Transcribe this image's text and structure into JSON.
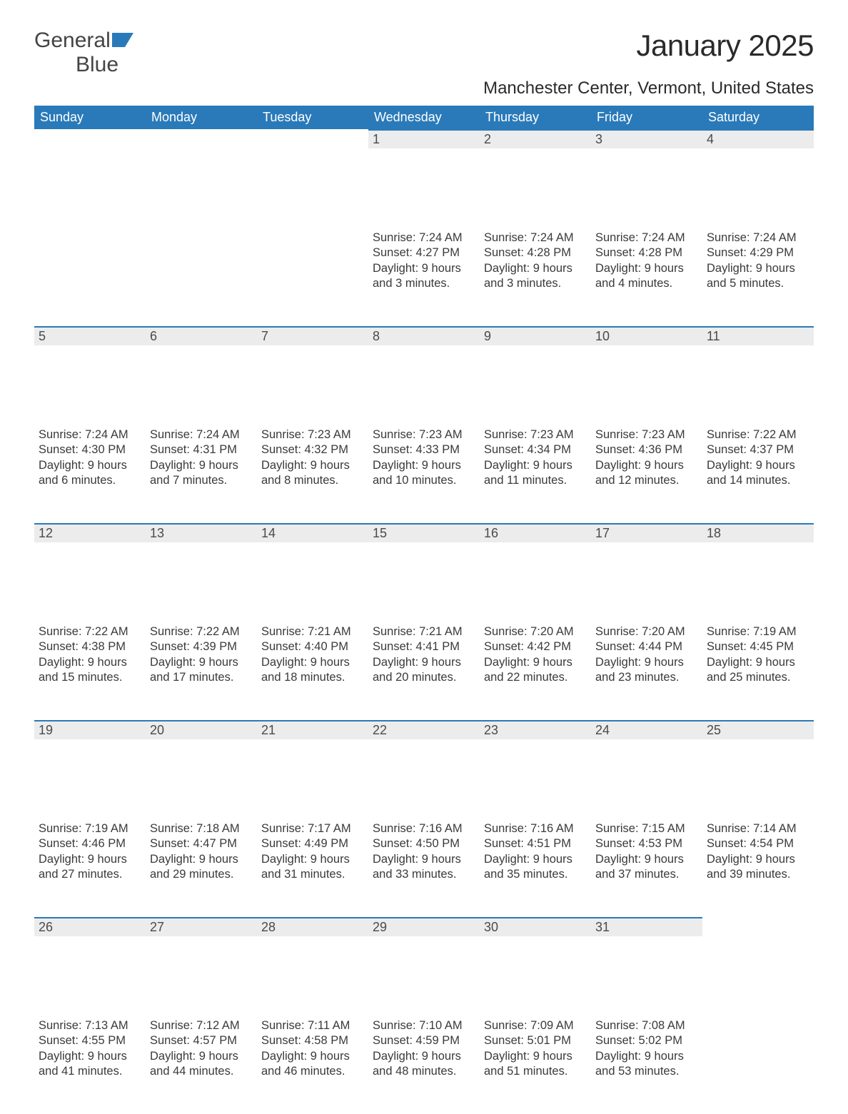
{
  "logo": {
    "word1": "General",
    "word2": "Blue"
  },
  "colors": {
    "header_bg": "#2a7ab9",
    "header_text": "#ffffff",
    "daynum_bg": "#ececec",
    "daynum_border": "#2a7ab9",
    "text": "#3a3a3a",
    "logo_gray": "#444444",
    "logo_blue": "#1f6fb2"
  },
  "title": "January 2025",
  "location": "Manchester Center, Vermont, United States",
  "weekdays": [
    "Sunday",
    "Monday",
    "Tuesday",
    "Wednesday",
    "Thursday",
    "Friday",
    "Saturday"
  ],
  "weeks": [
    [
      {
        "empty": true
      },
      {
        "empty": true
      },
      {
        "empty": true
      },
      {
        "num": "1",
        "sunrise": "Sunrise: 7:24 AM",
        "sunset": "Sunset: 4:27 PM",
        "day1": "Daylight: 9 hours",
        "day2": "and 3 minutes."
      },
      {
        "num": "2",
        "sunrise": "Sunrise: 7:24 AM",
        "sunset": "Sunset: 4:28 PM",
        "day1": "Daylight: 9 hours",
        "day2": "and 3 minutes."
      },
      {
        "num": "3",
        "sunrise": "Sunrise: 7:24 AM",
        "sunset": "Sunset: 4:28 PM",
        "day1": "Daylight: 9 hours",
        "day2": "and 4 minutes."
      },
      {
        "num": "4",
        "sunrise": "Sunrise: 7:24 AM",
        "sunset": "Sunset: 4:29 PM",
        "day1": "Daylight: 9 hours",
        "day2": "and 5 minutes."
      }
    ],
    [
      {
        "num": "5",
        "sunrise": "Sunrise: 7:24 AM",
        "sunset": "Sunset: 4:30 PM",
        "day1": "Daylight: 9 hours",
        "day2": "and 6 minutes."
      },
      {
        "num": "6",
        "sunrise": "Sunrise: 7:24 AM",
        "sunset": "Sunset: 4:31 PM",
        "day1": "Daylight: 9 hours",
        "day2": "and 7 minutes."
      },
      {
        "num": "7",
        "sunrise": "Sunrise: 7:23 AM",
        "sunset": "Sunset: 4:32 PM",
        "day1": "Daylight: 9 hours",
        "day2": "and 8 minutes."
      },
      {
        "num": "8",
        "sunrise": "Sunrise: 7:23 AM",
        "sunset": "Sunset: 4:33 PM",
        "day1": "Daylight: 9 hours",
        "day2": "and 10 minutes."
      },
      {
        "num": "9",
        "sunrise": "Sunrise: 7:23 AM",
        "sunset": "Sunset: 4:34 PM",
        "day1": "Daylight: 9 hours",
        "day2": "and 11 minutes."
      },
      {
        "num": "10",
        "sunrise": "Sunrise: 7:23 AM",
        "sunset": "Sunset: 4:36 PM",
        "day1": "Daylight: 9 hours",
        "day2": "and 12 minutes."
      },
      {
        "num": "11",
        "sunrise": "Sunrise: 7:22 AM",
        "sunset": "Sunset: 4:37 PM",
        "day1": "Daylight: 9 hours",
        "day2": "and 14 minutes."
      }
    ],
    [
      {
        "num": "12",
        "sunrise": "Sunrise: 7:22 AM",
        "sunset": "Sunset: 4:38 PM",
        "day1": "Daylight: 9 hours",
        "day2": "and 15 minutes."
      },
      {
        "num": "13",
        "sunrise": "Sunrise: 7:22 AM",
        "sunset": "Sunset: 4:39 PM",
        "day1": "Daylight: 9 hours",
        "day2": "and 17 minutes."
      },
      {
        "num": "14",
        "sunrise": "Sunrise: 7:21 AM",
        "sunset": "Sunset: 4:40 PM",
        "day1": "Daylight: 9 hours",
        "day2": "and 18 minutes."
      },
      {
        "num": "15",
        "sunrise": "Sunrise: 7:21 AM",
        "sunset": "Sunset: 4:41 PM",
        "day1": "Daylight: 9 hours",
        "day2": "and 20 minutes."
      },
      {
        "num": "16",
        "sunrise": "Sunrise: 7:20 AM",
        "sunset": "Sunset: 4:42 PM",
        "day1": "Daylight: 9 hours",
        "day2": "and 22 minutes."
      },
      {
        "num": "17",
        "sunrise": "Sunrise: 7:20 AM",
        "sunset": "Sunset: 4:44 PM",
        "day1": "Daylight: 9 hours",
        "day2": "and 23 minutes."
      },
      {
        "num": "18",
        "sunrise": "Sunrise: 7:19 AM",
        "sunset": "Sunset: 4:45 PM",
        "day1": "Daylight: 9 hours",
        "day2": "and 25 minutes."
      }
    ],
    [
      {
        "num": "19",
        "sunrise": "Sunrise: 7:19 AM",
        "sunset": "Sunset: 4:46 PM",
        "day1": "Daylight: 9 hours",
        "day2": "and 27 minutes."
      },
      {
        "num": "20",
        "sunrise": "Sunrise: 7:18 AM",
        "sunset": "Sunset: 4:47 PM",
        "day1": "Daylight: 9 hours",
        "day2": "and 29 minutes."
      },
      {
        "num": "21",
        "sunrise": "Sunrise: 7:17 AM",
        "sunset": "Sunset: 4:49 PM",
        "day1": "Daylight: 9 hours",
        "day2": "and 31 minutes."
      },
      {
        "num": "22",
        "sunrise": "Sunrise: 7:16 AM",
        "sunset": "Sunset: 4:50 PM",
        "day1": "Daylight: 9 hours",
        "day2": "and 33 minutes."
      },
      {
        "num": "23",
        "sunrise": "Sunrise: 7:16 AM",
        "sunset": "Sunset: 4:51 PM",
        "day1": "Daylight: 9 hours",
        "day2": "and 35 minutes."
      },
      {
        "num": "24",
        "sunrise": "Sunrise: 7:15 AM",
        "sunset": "Sunset: 4:53 PM",
        "day1": "Daylight: 9 hours",
        "day2": "and 37 minutes."
      },
      {
        "num": "25",
        "sunrise": "Sunrise: 7:14 AM",
        "sunset": "Sunset: 4:54 PM",
        "day1": "Daylight: 9 hours",
        "day2": "and 39 minutes."
      }
    ],
    [
      {
        "num": "26",
        "sunrise": "Sunrise: 7:13 AM",
        "sunset": "Sunset: 4:55 PM",
        "day1": "Daylight: 9 hours",
        "day2": "and 41 minutes."
      },
      {
        "num": "27",
        "sunrise": "Sunrise: 7:12 AM",
        "sunset": "Sunset: 4:57 PM",
        "day1": "Daylight: 9 hours",
        "day2": "and 44 minutes."
      },
      {
        "num": "28",
        "sunrise": "Sunrise: 7:11 AM",
        "sunset": "Sunset: 4:58 PM",
        "day1": "Daylight: 9 hours",
        "day2": "and 46 minutes."
      },
      {
        "num": "29",
        "sunrise": "Sunrise: 7:10 AM",
        "sunset": "Sunset: 4:59 PM",
        "day1": "Daylight: 9 hours",
        "day2": "and 48 minutes."
      },
      {
        "num": "30",
        "sunrise": "Sunrise: 7:09 AM",
        "sunset": "Sunset: 5:01 PM",
        "day1": "Daylight: 9 hours",
        "day2": "and 51 minutes."
      },
      {
        "num": "31",
        "sunrise": "Sunrise: 7:08 AM",
        "sunset": "Sunset: 5:02 PM",
        "day1": "Daylight: 9 hours",
        "day2": "and 53 minutes."
      },
      {
        "empty": true
      }
    ]
  ]
}
